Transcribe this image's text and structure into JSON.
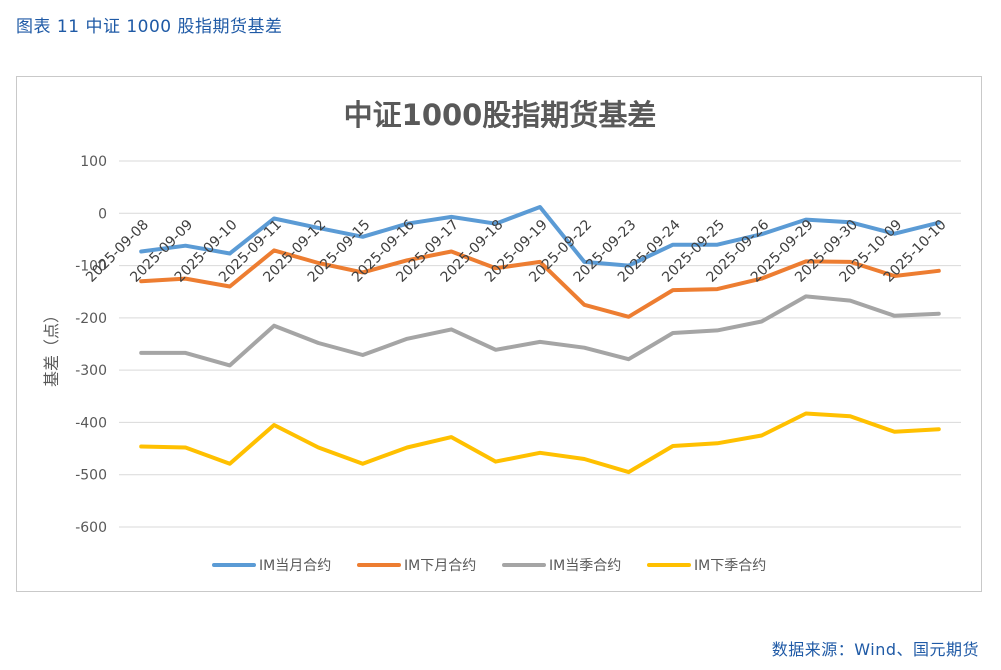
{
  "figure_label": "图表 11  中证 1000 股指期货基差",
  "source": "数据来源：Wind、国元期货",
  "chart_data": {
    "type": "line",
    "title": "中证1000股指期货基差",
    "ylabel": "基差（点）",
    "xlabel": "",
    "ylim": [
      -600,
      100
    ],
    "yticks": [
      100,
      0,
      -100,
      -200,
      -300,
      -400,
      -500,
      -600
    ],
    "grid": true,
    "legend_position": "bottom",
    "categories": [
      "2025-09-08",
      "2025-09-09",
      "2025-09-10",
      "2025-09-11",
      "2025-09-12",
      "2025-09-15",
      "2025-09-16",
      "2025-09-17",
      "2025-09-18",
      "2025-09-19",
      "2025-09-22",
      "2025-09-23",
      "2025-09-24",
      "2025-09-25",
      "2025-09-26",
      "2025-09-29",
      "2025-09-30",
      "2025-10-09",
      "2025-10-10"
    ],
    "series": [
      {
        "name": "IM当月合约",
        "color": "#5b9bd5",
        "values": [
          -73,
          -62,
          -77,
          -10,
          -28,
          -45,
          -20,
          -7,
          -20,
          12,
          -93,
          -100,
          -60,
          -60,
          -40,
          -12,
          -17,
          -39,
          -18
        ]
      },
      {
        "name": "IM下月合约",
        "color": "#ed7d31",
        "values": [
          -130,
          -125,
          -140,
          -71,
          -95,
          -113,
          -90,
          -73,
          -105,
          -93,
          -175,
          -198,
          -147,
          -145,
          -125,
          -92,
          -93,
          -120,
          -110
        ]
      },
      {
        "name": "IM当季合约",
        "color": "#a5a5a5",
        "values": [
          -267,
          -267,
          -291,
          -215,
          -248,
          -271,
          -240,
          -222,
          -261,
          -246,
          -257,
          -279,
          -229,
          -224,
          -207,
          -159,
          -167,
          -196,
          -192
        ]
      },
      {
        "name": "IM下季合约",
        "color": "#ffc000",
        "values": [
          -446,
          -448,
          -479,
          -405,
          -448,
          -479,
          -448,
          -428,
          -475,
          -458,
          -470,
          -495,
          -445,
          -440,
          -425,
          -383,
          -388,
          -418,
          -413
        ]
      }
    ]
  }
}
